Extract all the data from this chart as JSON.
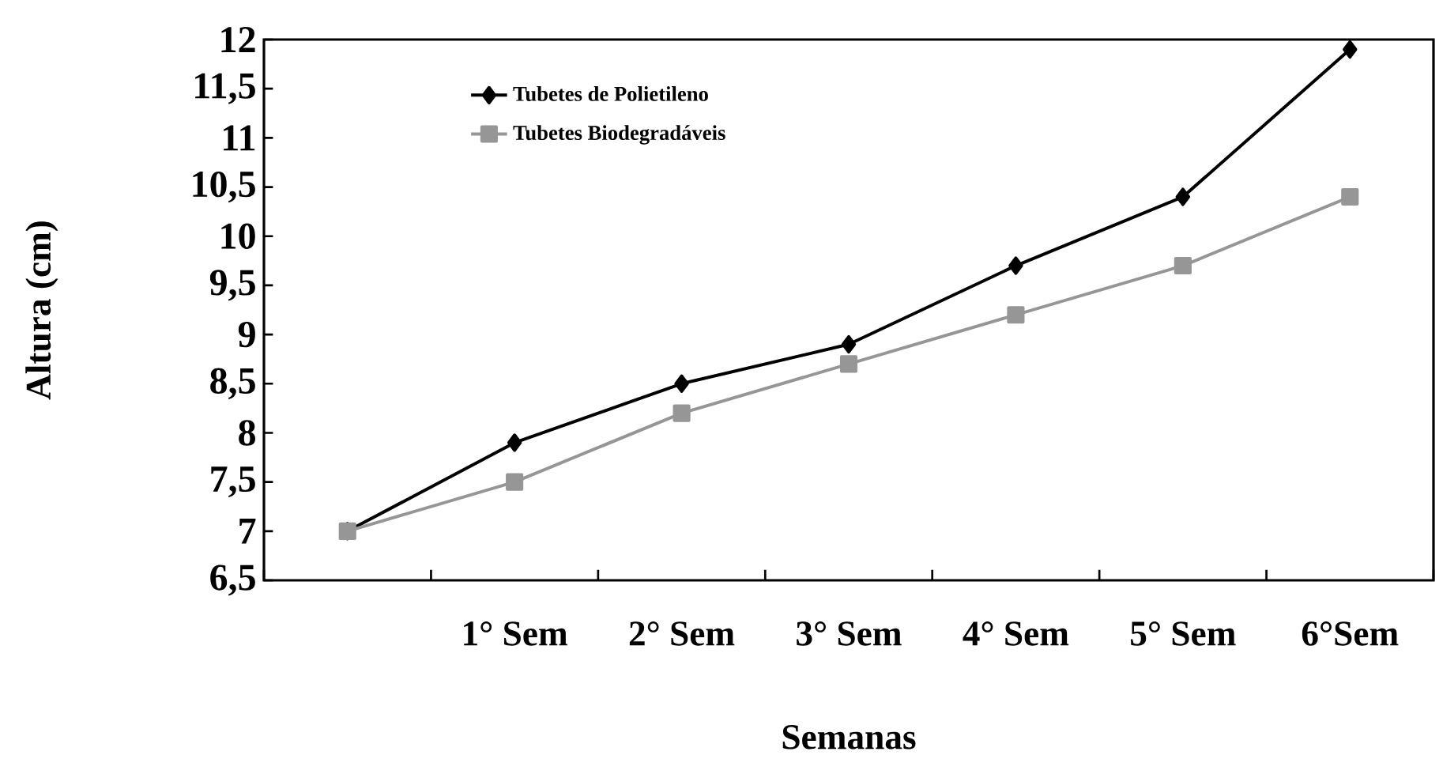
{
  "chart_data": {
    "type": "line",
    "xlabel": "Semanas",
    "ylabel": "Altura (cm)",
    "categories": [
      null,
      "1° Sem",
      "2° Sem",
      "3° Sem",
      "4° Sem",
      "5° Sem",
      "6°Sem"
    ],
    "series": [
      {
        "name": "Tubetes de Polietileno",
        "color": "#000000",
        "marker": "diamond",
        "values": [
          7.0,
          7.9,
          8.5,
          8.9,
          9.7,
          10.4,
          11.9
        ]
      },
      {
        "name": "Tubetes Biodegradáveis",
        "color": "#969696",
        "marker": "square",
        "values": [
          7.0,
          7.5,
          8.2,
          8.7,
          9.2,
          9.7,
          10.4
        ]
      }
    ],
    "ylim": [
      6.5,
      12
    ],
    "yticks": [
      {
        "value": 6.5,
        "label": "6,5"
      },
      7,
      {
        "value": 7.5,
        "label": "7,5"
      },
      8,
      {
        "value": 8.5,
        "label": "8,5"
      },
      9,
      {
        "value": 9.5,
        "label": "9,5"
      },
      10,
      {
        "value": 10.5,
        "label": "10,5"
      },
      11,
      {
        "value": 11.5,
        "label": "11,5"
      },
      12
    ],
    "legend": "top left"
  }
}
